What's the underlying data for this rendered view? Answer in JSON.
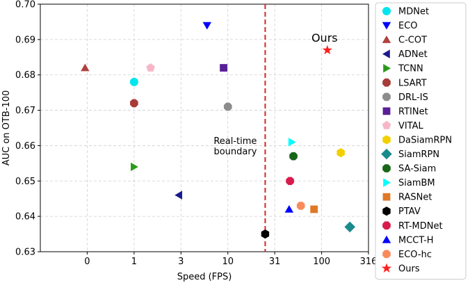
{
  "chart_data": {
    "type": "scatter",
    "xlabel": "Speed (FPS)",
    "ylabel": "AUC on OTB-100",
    "x_scale": "log",
    "x_ticks": [
      "0",
      "1",
      "3",
      "10",
      "31",
      "100",
      "316"
    ],
    "x_tick_values": [
      0.316,
      1,
      3.16,
      10,
      31.6,
      100,
      316
    ],
    "y_ticks": [
      "0.63",
      "0.64",
      "0.65",
      "0.66",
      "0.67",
      "0.68",
      "0.69",
      "0.70"
    ],
    "ylim": [
      0.63,
      0.7
    ],
    "xlim": [
      0.1,
      316
    ],
    "grid": true,
    "legend_position": "right, outside",
    "realtime_fps": 25,
    "realtime_label_line1": "Real-time",
    "realtime_label_line2": "boundary",
    "ours_label": "Ours",
    "series": [
      {
        "name": "MDNet",
        "x": 1,
        "y": 0.678,
        "marker": "circle",
        "color": "#00e5ee"
      },
      {
        "name": "ECO",
        "x": 6,
        "y": 0.694,
        "marker": "triangle-down",
        "color": "#0000ff"
      },
      {
        "name": "C-COT",
        "x": 0.3,
        "y": 0.682,
        "marker": "triangle-up",
        "color": "#b0413e"
      },
      {
        "name": "ADNet",
        "x": 3,
        "y": 0.646,
        "marker": "triangle-left",
        "color": "#1a1a8c"
      },
      {
        "name": "TCNN",
        "x": 1,
        "y": 0.654,
        "marker": "triangle-right",
        "color": "#2b9a1c"
      },
      {
        "name": "LSART",
        "x": 1,
        "y": 0.672,
        "marker": "octagon",
        "color": "#a83a3a"
      },
      {
        "name": "DRL-IS",
        "x": 10,
        "y": 0.671,
        "marker": "octagon",
        "color": "#8c8c8c"
      },
      {
        "name": "RTINet",
        "x": 9,
        "y": 0.682,
        "marker": "square",
        "color": "#5a1e96"
      },
      {
        "name": "VITAL",
        "x": 1.5,
        "y": 0.682,
        "marker": "pentagon",
        "color": "#f7b6c8"
      },
      {
        "name": "DaSiamRPN",
        "x": 160,
        "y": 0.658,
        "marker": "hexagon",
        "color": "#f2d000"
      },
      {
        "name": "SiamRPN",
        "x": 200,
        "y": 0.637,
        "marker": "diamond",
        "color": "#1a8a8c"
      },
      {
        "name": "SA-Siam",
        "x": 50,
        "y": 0.657,
        "marker": "octagon",
        "color": "#196619"
      },
      {
        "name": "SiamBM",
        "x": 48,
        "y": 0.661,
        "marker": "triangle-right",
        "color": "#00ffff"
      },
      {
        "name": "RASNet",
        "x": 83,
        "y": 0.642,
        "marker": "square",
        "color": "#e07828"
      },
      {
        "name": "PTAV",
        "x": 25,
        "y": 0.635,
        "marker": "hexagon",
        "color": "#000000"
      },
      {
        "name": "RT-MDNet",
        "x": 46,
        "y": 0.65,
        "marker": "octagon",
        "color": "#d81b4c"
      },
      {
        "name": "MCCT-H",
        "x": 45,
        "y": 0.642,
        "marker": "triangle-up",
        "color": "#0000ff"
      },
      {
        "name": "ECO-hc",
        "x": 60,
        "y": 0.643,
        "marker": "octagon",
        "color": "#f98a5c"
      },
      {
        "name": "Ours",
        "x": 115,
        "y": 0.687,
        "marker": "star",
        "color": "#ff2020"
      }
    ]
  }
}
